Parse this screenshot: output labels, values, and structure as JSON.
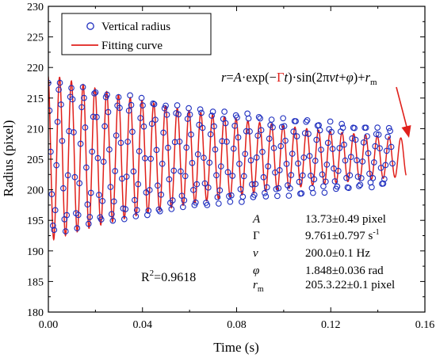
{
  "chart_data": {
    "type": "scatter",
    "xlabel": "Time (s)",
    "ylabel": "Radius (pixel)",
    "xlim": [
      0.0,
      0.16
    ],
    "ylim": [
      180,
      230
    ],
    "x_ticks": [
      "0.00",
      "0.04",
      "0.08",
      "0.12",
      "0.16"
    ],
    "y_ticks": [
      "180",
      "185",
      "190",
      "195",
      "200",
      "205",
      "210",
      "215",
      "220",
      "225",
      "230"
    ],
    "legend": {
      "placement": "top-left",
      "entries": [
        {
          "label": "Vertical radius",
          "marker": "open-circle",
          "color": "#1f2fbf"
        },
        {
          "label": "Fitting curve",
          "marker": "line",
          "color": "#e0201b"
        }
      ]
    },
    "fit": {
      "A": 13.73,
      "gamma": 9.761,
      "nu": 200.0,
      "phi": 1.848,
      "r_m": 205.3,
      "t_end": 0.152
    },
    "series": [
      {
        "name": "Vertical radius",
        "kind": "points",
        "x_start": 0.0,
        "x_end": 0.1462,
        "count": 300,
        "amplitude_start": 12.5,
        "amplitude_end": 4.6,
        "frequency": 200.0,
        "phase": 1.848,
        "mean": 205.3,
        "noise": 0.45
      },
      {
        "name": "Fitting curve",
        "kind": "line",
        "equation": "r=A·exp(−Γt)·sin(2πνt+φ)+rm"
      }
    ]
  },
  "equation": {
    "parts": [
      "r",
      "=",
      "A",
      "·exp(−",
      "Γ",
      "t",
      ")·sin(2π",
      "ν",
      "t",
      "+",
      "φ",
      ")+",
      "r",
      "m"
    ]
  },
  "params": [
    {
      "symbol": "A",
      "sub": "",
      "value": "13.73±0.49 pixel",
      "sup": "",
      "after": "",
      "color": "#000000"
    },
    {
      "symbol": "Γ",
      "sub": "",
      "value": "9.761±0.797 s",
      "sup": "-1",
      "after": "",
      "color": "#e0201b"
    },
    {
      "symbol": "ν",
      "sub": "",
      "value": "200.0±0.1 Hz",
      "sup": "",
      "after": "",
      "color": "#000000"
    },
    {
      "symbol": "φ",
      "sub": "",
      "value": "1.848±0.036 rad",
      "sup": "",
      "after": "",
      "color": "#000000"
    },
    {
      "symbol": "r",
      "sub": "m",
      "value": "205.3.22±0.1 pixel",
      "sup": "",
      "after": "",
      "color": "#000000"
    }
  ],
  "r2": {
    "base": "R",
    "sup": "2",
    "value": "=0.9618"
  },
  "colors": {
    "points": "#1f2fbf",
    "curve": "#e0201b",
    "highlight": "#e0201b",
    "axis": "#000000"
  }
}
